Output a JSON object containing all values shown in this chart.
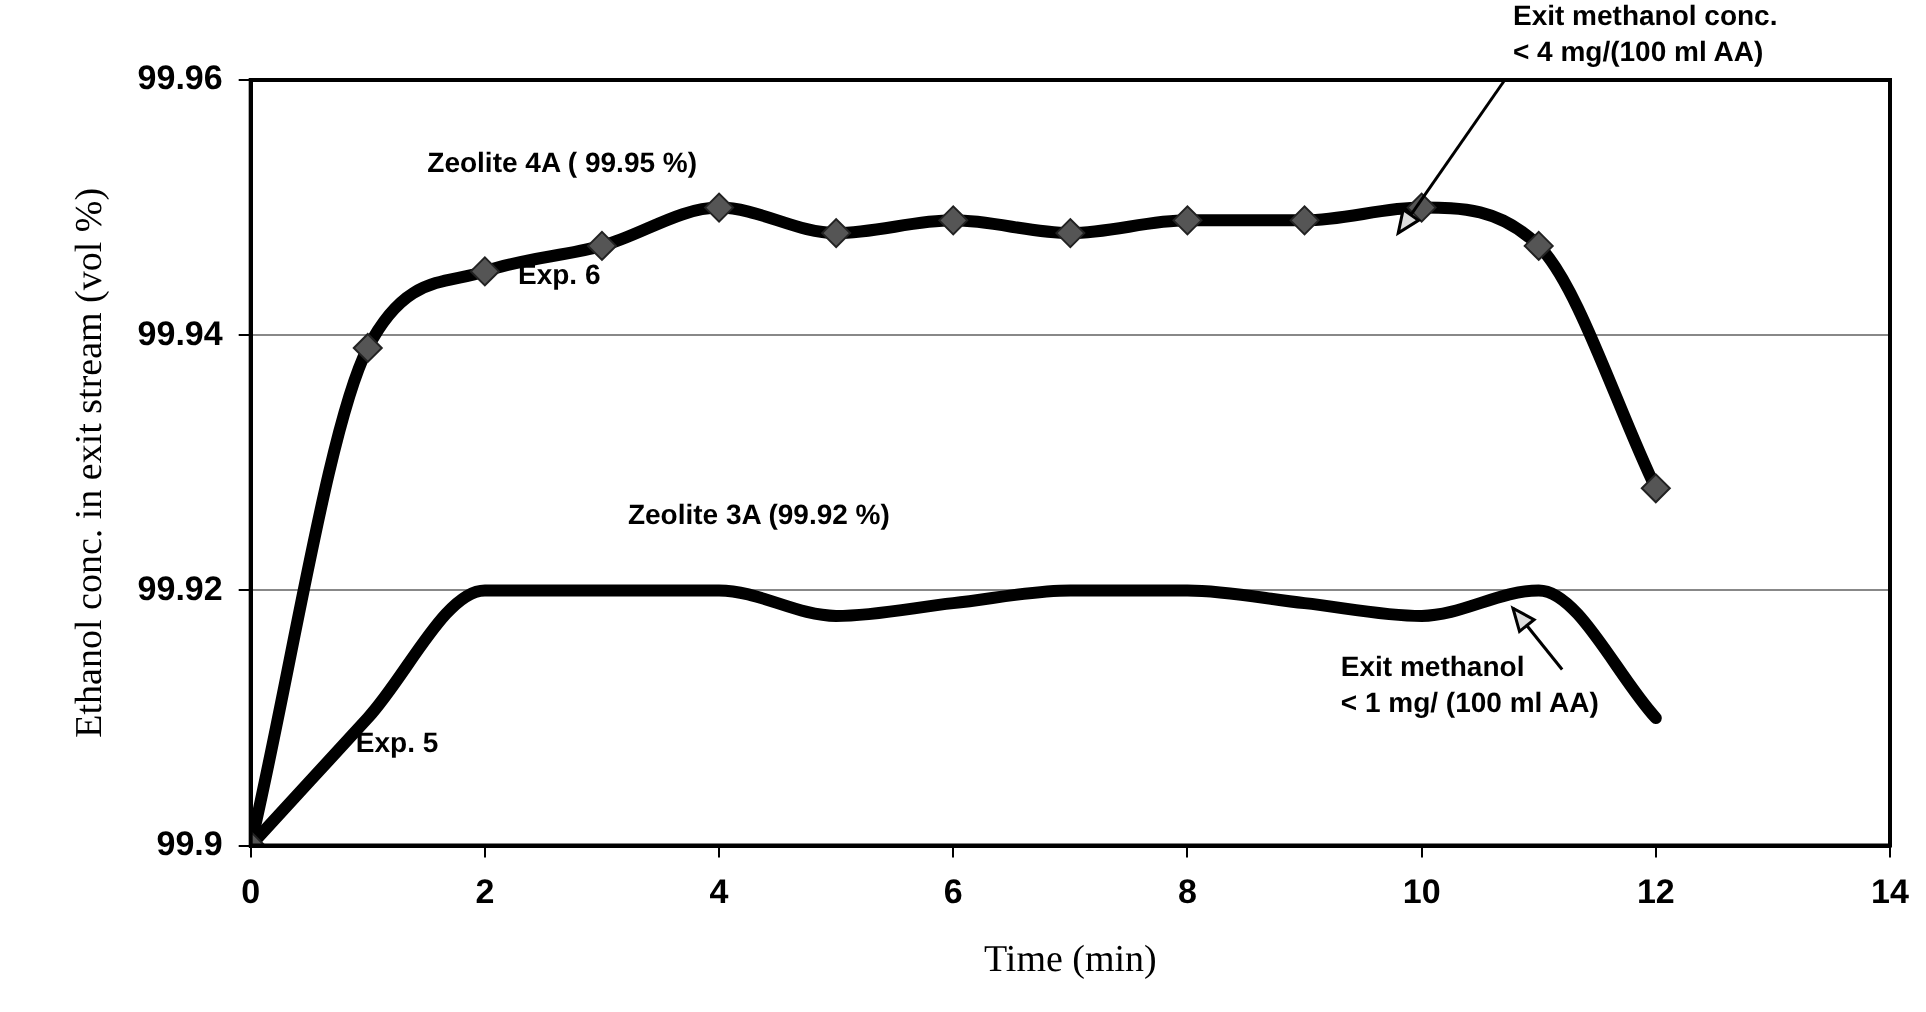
{
  "chart_data": {
    "type": "line",
    "xlabel": "Time (min)",
    "ylabel": "Ethanol conc. in exit stream (vol %)",
    "xlim": [
      0,
      14
    ],
    "xticks": [
      0,
      2,
      4,
      6,
      8,
      10,
      12,
      14
    ],
    "ylim": [
      99.9,
      99.96
    ],
    "yticks": [
      {
        "value": 99.9,
        "label": "99.9"
      },
      99.92,
      99.94,
      99.96
    ],
    "grid": "y",
    "series": [
      {
        "name": "Exp. 6",
        "color": "#000000",
        "marker": "diamond",
        "x": [
          0,
          1,
          2,
          3,
          4,
          5,
          6,
          7,
          8,
          9,
          10,
          11,
          12
        ],
        "values": [
          99.9,
          99.939,
          99.945,
          99.947,
          99.95,
          99.948,
          99.949,
          99.948,
          99.949,
          99.949,
          99.95,
          99.947,
          99.928
        ]
      },
      {
        "name": "Exp. 5",
        "color": "#000000",
        "marker": "none",
        "x": [
          0,
          1,
          2,
          3,
          4,
          5,
          6,
          7,
          8,
          9,
          10,
          11,
          12
        ],
        "values": [
          99.9,
          99.91,
          99.92,
          99.92,
          99.92,
          99.918,
          99.919,
          99.92,
          99.92,
          99.919,
          99.918,
          99.92,
          99.91
        ]
      }
    ],
    "annotations": [
      "Zeolite 4A ( 99.95 %)",
      "Zeolite 3A (99.92 %)",
      "Exit methanol conc.\n< 4 mg/(100 ml AA)",
      "Exit methanol\n< 1 mg/ (100 ml AA)"
    ]
  }
}
